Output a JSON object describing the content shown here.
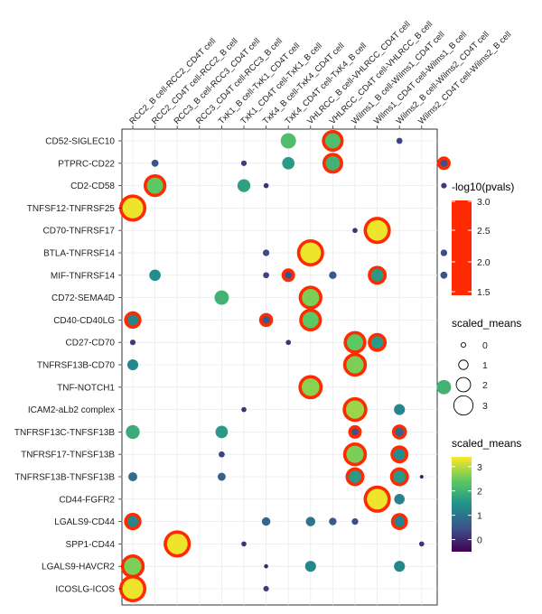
{
  "chart_data": {
    "type": "dotplot",
    "x_categories": [
      "RCC2_B cell-RCC2_CD4T cell",
      "RCC2_CD4T cell-RCC2_B cell",
      "RCC3_B cell-RCC3_CD4T cell",
      "RCC3_CD4T cell-RCC3_B cell",
      "TxK1_B cell-TxK1_CD4T cell",
      "TxK1_CD4T cell-TxK1_B cell",
      "TxK4_B cell-TxK4_CD4T cell",
      "TxK4_CD4T cell-TxK4_B cell",
      "VHLRCC_B cell-VHLRCC_CD4T cell",
      "VHLRCC_CD4T cell-VHLRCC_B cell",
      "Wilms1_B cell-Wilms1_CD4T cell",
      "Wilms1_CD4T cell-Wilms1_B cell",
      "Wilms2_B cell-Wilms2_CD4T cell",
      "Wilms2_CD4T cell-Wilms2_B cell"
    ],
    "y_categories": [
      "CD52-SIGLEC10",
      "PTPRC-CD22",
      "CD2-CD58",
      "TNFSF12-TNFRSF25",
      "CD70-TNFRSF17",
      "BTLA-TNFRSF14",
      "MIF-TNFRSF14",
      "CD72-SEMA4D",
      "CD40-CD40LG",
      "CD27-CD70",
      "TNFRSF13B-CD70",
      "TNF-NOTCH1",
      "ICAM2-aLb2 complex",
      "TNFRSF13C-TNFSF13B",
      "TNFRSF17-TNFSF13B",
      "TNFRSF13B-TNFSF13B",
      "CD44-FGFR2",
      "LGALS9-CD44",
      "SPP1-CD44",
      "LGALS9-HAVCR2",
      "ICOSLG-ICOS"
    ],
    "points": [
      {
        "x": 7,
        "y": 0,
        "mean": 2.2,
        "sig": false
      },
      {
        "x": 9,
        "y": 0,
        "mean": 2.2,
        "sig": true
      },
      {
        "x": 12,
        "y": 0,
        "mean": 0.3,
        "sig": false
      },
      {
        "x": 1,
        "y": 1,
        "mean": 0.5,
        "sig": false
      },
      {
        "x": 5,
        "y": 1,
        "mean": 0.2,
        "sig": false
      },
      {
        "x": 7,
        "y": 1,
        "mean": 1.6,
        "sig": false
      },
      {
        "x": 9,
        "y": 1,
        "mean": 2.0,
        "sig": true
      },
      {
        "x": 14,
        "y": 1,
        "mean": 0.5,
        "sig": true
      },
      {
        "x": 1,
        "y": 2,
        "mean": 2.4,
        "sig": true
      },
      {
        "x": 5,
        "y": 2,
        "mean": 1.7,
        "sig": false
      },
      {
        "x": 6,
        "y": 2,
        "mean": 0.1,
        "sig": false
      },
      {
        "x": 14,
        "y": 2,
        "mean": 0.2,
        "sig": false
      },
      {
        "x": 0,
        "y": 3,
        "mean": 3.3,
        "sig": true
      },
      {
        "x": 10,
        "y": 4,
        "mean": 0.1,
        "sig": false
      },
      {
        "x": 11,
        "y": 4,
        "mean": 3.3,
        "sig": true
      },
      {
        "x": 6,
        "y": 5,
        "mean": 0.4,
        "sig": false
      },
      {
        "x": 8,
        "y": 5,
        "mean": 3.3,
        "sig": true
      },
      {
        "x": 14,
        "y": 5,
        "mean": 0.4,
        "sig": false
      },
      {
        "x": 1,
        "y": 6,
        "mean": 1.4,
        "sig": false
      },
      {
        "x": 6,
        "y": 6,
        "mean": 0.3,
        "sig": false
      },
      {
        "x": 7,
        "y": 6,
        "mean": 0.5,
        "sig": true
      },
      {
        "x": 9,
        "y": 6,
        "mean": 0.6,
        "sig": false
      },
      {
        "x": 11,
        "y": 6,
        "mean": 1.6,
        "sig": true
      },
      {
        "x": 14,
        "y": 6,
        "mean": 0.5,
        "sig": false
      },
      {
        "x": 4,
        "y": 7,
        "mean": 2.0,
        "sig": false
      },
      {
        "x": 8,
        "y": 7,
        "mean": 2.6,
        "sig": true
      },
      {
        "x": 0,
        "y": 8,
        "mean": 1.3,
        "sig": true
      },
      {
        "x": 6,
        "y": 8,
        "mean": 0.6,
        "sig": true
      },
      {
        "x": 8,
        "y": 8,
        "mean": 2.4,
        "sig": true
      },
      {
        "x": 0,
        "y": 9,
        "mean": 0.2,
        "sig": false
      },
      {
        "x": 7,
        "y": 9,
        "mean": 0.1,
        "sig": false
      },
      {
        "x": 10,
        "y": 9,
        "mean": 2.4,
        "sig": true
      },
      {
        "x": 11,
        "y": 9,
        "mean": 1.6,
        "sig": true
      },
      {
        "x": 0,
        "y": 10,
        "mean": 1.3,
        "sig": false
      },
      {
        "x": 10,
        "y": 10,
        "mean": 2.6,
        "sig": true
      },
      {
        "x": 8,
        "y": 11,
        "mean": 2.7,
        "sig": true
      },
      {
        "x": 14,
        "y": 11,
        "mean": 2.0,
        "sig": false
      },
      {
        "x": 5,
        "y": 12,
        "mean": 0.1,
        "sig": false
      },
      {
        "x": 10,
        "y": 12,
        "mean": 2.8,
        "sig": true
      },
      {
        "x": 12,
        "y": 12,
        "mean": 1.3,
        "sig": false
      },
      {
        "x": 0,
        "y": 13,
        "mean": 1.9,
        "sig": false
      },
      {
        "x": 4,
        "y": 13,
        "mean": 1.6,
        "sig": false
      },
      {
        "x": 10,
        "y": 13,
        "mean": 0.5,
        "sig": true
      },
      {
        "x": 12,
        "y": 13,
        "mean": 0.8,
        "sig": true
      },
      {
        "x": 4,
        "y": 14,
        "mean": 0.3,
        "sig": false
      },
      {
        "x": 10,
        "y": 14,
        "mean": 2.6,
        "sig": true
      },
      {
        "x": 12,
        "y": 14,
        "mean": 1.4,
        "sig": true
      },
      {
        "x": 0,
        "y": 15,
        "mean": 0.9,
        "sig": false
      },
      {
        "x": 4,
        "y": 15,
        "mean": 0.7,
        "sig": false
      },
      {
        "x": 10,
        "y": 15,
        "mean": 1.6,
        "sig": true
      },
      {
        "x": 12,
        "y": 15,
        "mean": 1.6,
        "sig": true
      },
      {
        "x": 13,
        "y": 15,
        "mean": -0.2,
        "sig": false
      },
      {
        "x": 11,
        "y": 16,
        "mean": 3.3,
        "sig": true
      },
      {
        "x": 12,
        "y": 16,
        "mean": 1.2,
        "sig": false
      },
      {
        "x": 0,
        "y": 17,
        "mean": 1.3,
        "sig": true
      },
      {
        "x": 6,
        "y": 17,
        "mean": 0.8,
        "sig": false
      },
      {
        "x": 8,
        "y": 17,
        "mean": 1.0,
        "sig": false
      },
      {
        "x": 9,
        "y": 17,
        "mean": 0.6,
        "sig": false
      },
      {
        "x": 10,
        "y": 17,
        "mean": 0.4,
        "sig": false
      },
      {
        "x": 12,
        "y": 17,
        "mean": 1.2,
        "sig": true
      },
      {
        "x": 2,
        "y": 18,
        "mean": 3.3,
        "sig": true
      },
      {
        "x": 5,
        "y": 18,
        "mean": 0.1,
        "sig": false
      },
      {
        "x": 13,
        "y": 18,
        "mean": 0.1,
        "sig": false
      },
      {
        "x": 6,
        "y": 19,
        "mean": -0.1,
        "sig": false
      },
      {
        "x": 8,
        "y": 19,
        "mean": 1.3,
        "sig": false
      },
      {
        "x": 12,
        "y": 19,
        "mean": 1.3,
        "sig": false
      },
      {
        "x": 0,
        "y": 19,
        "mean": 2.6,
        "sig": true
      },
      {
        "x": 0,
        "y": 20,
        "mean": 3.3,
        "sig": true
      },
      {
        "x": 6,
        "y": 20,
        "mean": 0.2,
        "sig": false
      }
    ],
    "legend_pvals": {
      "title": "-log10(pvals)",
      "range": [
        1.5,
        3.0
      ],
      "ticks": [
        "3.0",
        "2.5",
        "2.0",
        "1.5"
      ],
      "color": "#ff2a00"
    },
    "legend_size": {
      "title": "scaled_means",
      "ticks": [
        "0",
        "1",
        "2",
        "3"
      ]
    },
    "legend_color": {
      "title": "scaled_means",
      "ticks": [
        "3",
        "2",
        "1",
        "0"
      ],
      "range": [
        -0.5,
        3.4
      ]
    }
  }
}
